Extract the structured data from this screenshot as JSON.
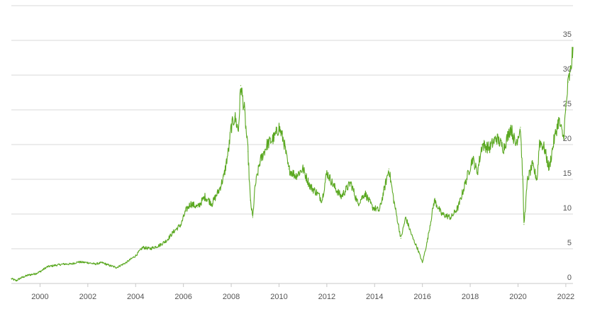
{
  "chart_data": {
    "type": "line",
    "title": "",
    "xlabel": "",
    "ylabel": "",
    "xlim": [
      1998.8,
      2022.3
    ],
    "ylim": [
      0,
      35
    ],
    "y_ticks": [
      0,
      5,
      10,
      15,
      20,
      25,
      30,
      35
    ],
    "x_ticks": [
      2000,
      2002,
      2004,
      2006,
      2008,
      2010,
      2012,
      2014,
      2016,
      2018,
      2020,
      2022
    ],
    "grid": "horizontal",
    "series": [
      {
        "color": "#5aa821",
        "x": [
          1998.8,
          1999.0,
          1999.2,
          1999.5,
          1999.8,
          2000.0,
          2000.3,
          2000.6,
          2001.0,
          2001.3,
          2001.6,
          2002.0,
          2002.3,
          2002.6,
          2002.9,
          2003.2,
          2003.6,
          2004.0,
          2004.3,
          2004.6,
          2005.0,
          2005.3,
          2005.6,
          2005.9,
          2006.1,
          2006.3,
          2006.6,
          2006.9,
          2007.2,
          2007.5,
          2007.7,
          2007.9,
          2008.0,
          2008.15,
          2008.3,
          2008.4,
          2008.55,
          2008.7,
          2008.8,
          2008.9,
          2009.0,
          2009.2,
          2009.5,
          2009.8,
          2010.0,
          2010.2,
          2010.4,
          2010.7,
          2011.0,
          2011.3,
          2011.6,
          2011.8,
          2012.0,
          2012.3,
          2012.6,
          2013.0,
          2013.3,
          2013.6,
          2013.9,
          2014.2,
          2014.4,
          2014.6,
          2014.8,
          2015.1,
          2015.3,
          2015.6,
          2015.8,
          2016.0,
          2016.2,
          2016.5,
          2016.8,
          2017.2,
          2017.5,
          2017.8,
          2018.1,
          2018.3,
          2018.5,
          2018.8,
          2019.1,
          2019.4,
          2019.7,
          2019.9,
          2020.1,
          2020.2,
          2020.25,
          2020.4,
          2020.6,
          2020.8,
          2020.9,
          2021.1,
          2021.3,
          2021.5,
          2021.7,
          2021.9,
          2022.0,
          2022.1,
          2022.2,
          2022.3
        ],
        "y": [
          0.7,
          0.4,
          0.8,
          1.2,
          1.4,
          1.7,
          2.4,
          2.6,
          2.8,
          2.8,
          3.1,
          3.0,
          2.8,
          3.0,
          2.6,
          2.3,
          3.0,
          4.0,
          5.2,
          5.0,
          5.5,
          6.2,
          7.5,
          8.5,
          10.5,
          11.5,
          11.0,
          12.5,
          11.5,
          13.5,
          15.5,
          19.5,
          22.5,
          24.0,
          22.0,
          28.5,
          25.0,
          19.0,
          12.0,
          9.5,
          14.0,
          17.5,
          20.0,
          21.0,
          22.5,
          20.5,
          16.5,
          15.5,
          16.5,
          14.0,
          13.0,
          12.0,
          16.0,
          14.0,
          12.5,
          14.5,
          11.5,
          13.0,
          11.0,
          10.5,
          13.5,
          16.5,
          12.0,
          6.5,
          9.5,
          6.5,
          5.0,
          3.0,
          6.0,
          12.0,
          10.0,
          9.5,
          11.0,
          14.5,
          18.0,
          16.0,
          20.0,
          19.5,
          21.0,
          19.5,
          22.5,
          20.0,
          22.5,
          15.0,
          8.5,
          15.0,
          17.0,
          15.0,
          20.5,
          19.5,
          16.5,
          20.5,
          23.5,
          21.0,
          25.0,
          29.0,
          30.5,
          34.0
        ]
      }
    ]
  },
  "colors": {
    "line": "#5aa821",
    "grid": "#d9d9d9",
    "label": "#555555"
  }
}
